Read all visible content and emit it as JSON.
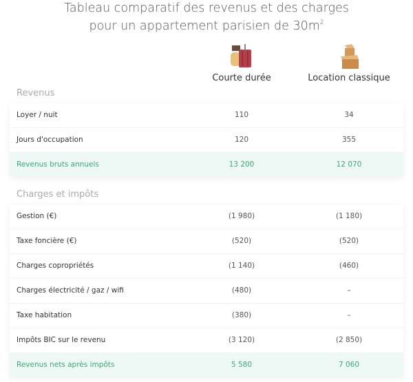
{
  "title": {
    "line1": "Tableau comparatif des revenus et des charges",
    "line2": "pour un appartement parisien de 30m",
    "superscript": "2"
  },
  "columns": [
    {
      "label": "Courte durée",
      "icon": "luggage-icon"
    },
    {
      "label": "Location classique",
      "icon": "boxes-icon"
    }
  ],
  "accent_color": "#3aa878",
  "sections": [
    {
      "title": "Revenus",
      "rows": [
        {
          "label": "Loyer / nuit",
          "v1": "110",
          "v2": "34"
        },
        {
          "label": "Jours d'occupation",
          "v1": "120",
          "v2": "355"
        },
        {
          "label": "Revenus bruts annuels",
          "v1": "13 200",
          "v2": "12 070",
          "total": true
        }
      ]
    },
    {
      "title": "Charges et impôts",
      "rows": [
        {
          "label": "Gestion (€)",
          "v1": "(1 980)",
          "v2": "(1 180)"
        },
        {
          "label": "Taxe foncière (€)",
          "v1": "(520)",
          "v2": "(520)"
        },
        {
          "label": "Charges copropriétés",
          "v1": "(1 140)",
          "v2": "(460)"
        },
        {
          "label": "Charges électricité / gaz / wifi",
          "v1": "(480)",
          "v2": "–"
        },
        {
          "label": "Taxe habitation",
          "v1": "(380)",
          "v2": "–"
        },
        {
          "label": "Impôts BIC sur le revenu",
          "v1": "(3 120)",
          "v2": "(2 850)"
        },
        {
          "label": "Revenus nets après impôts",
          "v1": "5 580",
          "v2": "7 060",
          "total": true
        }
      ]
    }
  ]
}
